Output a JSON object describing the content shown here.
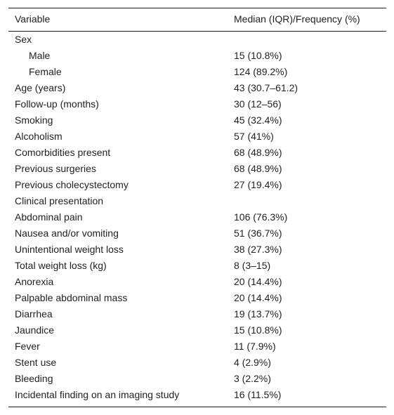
{
  "table": {
    "header": [
      "Variable",
      "Median (IQR)/Frequency (%)"
    ],
    "rows": [
      {
        "label": "Sex",
        "items": [
          {
            "label": "Male",
            "value": "15 (10.8%)"
          },
          {
            "label": "Female",
            "value": "124 (89.2%)"
          }
        ]
      },
      {
        "label": "Age (years)",
        "value": "43 (30.7–61.2)"
      },
      {
        "label": "Follow-up (months)",
        "value": "30 (12–56)"
      },
      {
        "label": "Smoking",
        "value": "45 (32.4%)"
      },
      {
        "label": "Alcoholism",
        "value": "57 (41%)"
      },
      {
        "label": "Comorbidities present",
        "value": "68 (48.9%)"
      },
      {
        "label": "Previous surgeries",
        "value": "68 (48.9%)"
      },
      {
        "label": "Previous cholecystectomy",
        "value": "27 (19.4%)"
      },
      {
        "label": "Clinical presentation"
      },
      {
        "label": "Abdominal pain",
        "value": "106 (76.3%)"
      },
      {
        "label": "Nausea and/or vomiting",
        "value": "51 (36.7%)"
      },
      {
        "label": "Unintentional weight loss",
        "value": "38 (27.3%)"
      },
      {
        "label": "Total weight loss (kg)",
        "value": "8 (3–15)"
      },
      {
        "label": "Anorexia",
        "value": "20 (14.4%)"
      },
      {
        "label": "Palpable abdominal mass",
        "value": "20 (14.4%)"
      },
      {
        "label": "Diarrhea",
        "value": "19 (13.7%)"
      },
      {
        "label": "Jaundice",
        "value": "15 (10.8%)"
      },
      {
        "label": "Fever",
        "value": "11 (7.9%)"
      },
      {
        "label": "Stent use",
        "value": "4 (2.9%)"
      },
      {
        "label": "Bleeding",
        "value": "3 (2.2%)"
      },
      {
        "label": "Incidental finding on an imaging study",
        "value": "16 (11.5%)"
      }
    ]
  }
}
